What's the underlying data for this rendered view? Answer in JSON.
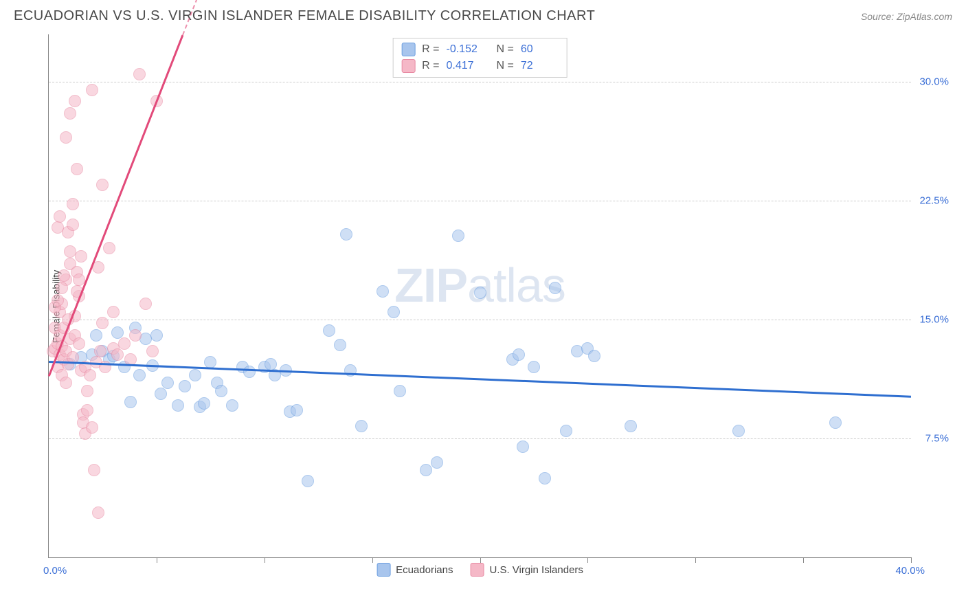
{
  "header": {
    "title": "ECUADORIAN VS U.S. VIRGIN ISLANDER FEMALE DISABILITY CORRELATION CHART",
    "source": "Source: ZipAtlas.com"
  },
  "watermark": {
    "zip": "ZIP",
    "atlas": "atlas"
  },
  "chart": {
    "type": "scatter",
    "y_axis_title": "Female Disability",
    "background_color": "#ffffff",
    "grid_color": "#cccccc",
    "axis_color": "#888888",
    "xlim": [
      0,
      40
    ],
    "ylim": [
      0,
      33
    ],
    "x_ticks": [
      0,
      5,
      10,
      15,
      20,
      25,
      30,
      35,
      40
    ],
    "y_gridlines": [
      7.5,
      15.0,
      22.5,
      30.0
    ],
    "y_tick_labels": [
      "7.5%",
      "15.0%",
      "22.5%",
      "30.0%"
    ],
    "x_min_label": "0.0%",
    "x_max_label": "40.0%",
    "tick_label_color": "#3b6fd6",
    "point_radius": 9,
    "point_opacity": 0.55,
    "series": [
      {
        "name": "Ecuadorians",
        "fill_color": "#a8c5ed",
        "stroke_color": "#6b9ee0",
        "r_value": "-0.152",
        "n_value": "60",
        "trend": {
          "x1": 0,
          "y1": 12.4,
          "x2": 40,
          "y2": 10.2,
          "color": "#2f6fd0",
          "width": 2.5
        },
        "points": [
          [
            1.0,
            12.2
          ],
          [
            1.5,
            12.6
          ],
          [
            2.0,
            12.8
          ],
          [
            2.2,
            14.0
          ],
          [
            2.5,
            13.0
          ],
          [
            2.8,
            12.5
          ],
          [
            3.0,
            12.7
          ],
          [
            3.2,
            14.2
          ],
          [
            3.5,
            12.0
          ],
          [
            3.8,
            9.8
          ],
          [
            4.0,
            14.5
          ],
          [
            4.2,
            11.5
          ],
          [
            4.5,
            13.8
          ],
          [
            5.0,
            14.0
          ],
          [
            5.2,
            10.3
          ],
          [
            5.5,
            11.0
          ],
          [
            6.0,
            9.6
          ],
          [
            6.3,
            10.8
          ],
          [
            6.8,
            11.5
          ],
          [
            7.0,
            9.5
          ],
          [
            7.2,
            9.7
          ],
          [
            7.8,
            11.0
          ],
          [
            8.0,
            10.5
          ],
          [
            8.5,
            9.6
          ],
          [
            9.0,
            12.0
          ],
          [
            9.3,
            11.7
          ],
          [
            10.0,
            12.0
          ],
          [
            10.5,
            11.5
          ],
          [
            11.0,
            11.8
          ],
          [
            11.2,
            9.2
          ],
          [
            11.5,
            9.3
          ],
          [
            12.0,
            4.8
          ],
          [
            13.0,
            14.3
          ],
          [
            13.5,
            13.4
          ],
          [
            13.8,
            20.4
          ],
          [
            14.0,
            11.8
          ],
          [
            14.5,
            8.3
          ],
          [
            15.5,
            16.8
          ],
          [
            16.0,
            15.5
          ],
          [
            16.3,
            10.5
          ],
          [
            17.5,
            5.5
          ],
          [
            18.0,
            6.0
          ],
          [
            19.0,
            20.3
          ],
          [
            20.0,
            16.7
          ],
          [
            21.5,
            12.5
          ],
          [
            21.8,
            12.8
          ],
          [
            22.0,
            7.0
          ],
          [
            22.5,
            12.0
          ],
          [
            23.0,
            5.0
          ],
          [
            23.5,
            17.0
          ],
          [
            24.0,
            8.0
          ],
          [
            24.5,
            13.0
          ],
          [
            25.0,
            13.2
          ],
          [
            25.3,
            12.7
          ],
          [
            27.0,
            8.3
          ],
          [
            32.0,
            8.0
          ],
          [
            36.5,
            8.5
          ],
          [
            10.3,
            12.2
          ],
          [
            7.5,
            12.3
          ],
          [
            4.8,
            12.1
          ]
        ]
      },
      {
        "name": "U.S. Virgin Islanders",
        "fill_color": "#f5b8c7",
        "stroke_color": "#e88aa3",
        "r_value": "0.417",
        "n_value": "72",
        "trend": {
          "x1": 0,
          "y1": 11.5,
          "x2": 6.2,
          "y2": 33.0,
          "color": "#e24a7a",
          "width": 2.5,
          "dash_extend": true
        },
        "points": [
          [
            0.2,
            13.0
          ],
          [
            0.3,
            13.2
          ],
          [
            0.3,
            14.5
          ],
          [
            0.4,
            13.5
          ],
          [
            0.4,
            12.0
          ],
          [
            0.5,
            12.8
          ],
          [
            0.5,
            14.0
          ],
          [
            0.5,
            15.5
          ],
          [
            0.6,
            11.5
          ],
          [
            0.6,
            13.3
          ],
          [
            0.6,
            16.0
          ],
          [
            0.7,
            14.5
          ],
          [
            0.7,
            12.5
          ],
          [
            0.8,
            13.0
          ],
          [
            0.8,
            11.0
          ],
          [
            0.8,
            17.5
          ],
          [
            0.9,
            12.2
          ],
          [
            0.9,
            20.5
          ],
          [
            1.0,
            13.8
          ],
          [
            1.0,
            18.5
          ],
          [
            1.0,
            19.3
          ],
          [
            1.1,
            21.0
          ],
          [
            1.1,
            12.6
          ],
          [
            1.2,
            15.2
          ],
          [
            1.2,
            14.0
          ],
          [
            1.3,
            24.5
          ],
          [
            1.3,
            18.0
          ],
          [
            1.4,
            16.5
          ],
          [
            1.4,
            13.5
          ],
          [
            1.5,
            19.0
          ],
          [
            1.5,
            11.8
          ],
          [
            1.6,
            9.0
          ],
          [
            1.6,
            8.5
          ],
          [
            1.7,
            7.8
          ],
          [
            1.8,
            9.3
          ],
          [
            1.8,
            10.5
          ],
          [
            2.0,
            29.5
          ],
          [
            2.0,
            8.2
          ],
          [
            2.1,
            5.5
          ],
          [
            2.2,
            12.3
          ],
          [
            2.3,
            18.3
          ],
          [
            2.4,
            13.0
          ],
          [
            2.5,
            14.8
          ],
          [
            2.5,
            23.5
          ],
          [
            2.6,
            12.0
          ],
          [
            2.8,
            19.5
          ],
          [
            3.0,
            13.2
          ],
          [
            3.0,
            15.5
          ],
          [
            3.2,
            12.8
          ],
          [
            3.5,
            13.5
          ],
          [
            3.8,
            12.5
          ],
          [
            4.0,
            14.0
          ],
          [
            4.2,
            30.5
          ],
          [
            4.5,
            16.0
          ],
          [
            4.8,
            13.0
          ],
          [
            5.0,
            28.8
          ],
          [
            1.0,
            28.0
          ],
          [
            1.2,
            28.8
          ],
          [
            0.8,
            26.5
          ],
          [
            0.4,
            20.8
          ],
          [
            0.5,
            21.5
          ],
          [
            1.1,
            22.3
          ],
          [
            0.3,
            15.8
          ],
          [
            0.4,
            16.2
          ],
          [
            0.6,
            17.0
          ],
          [
            0.7,
            17.8
          ],
          [
            1.3,
            16.8
          ],
          [
            1.4,
            17.5
          ],
          [
            1.7,
            12.0
          ],
          [
            1.9,
            11.5
          ],
          [
            2.3,
            2.8
          ],
          [
            0.9,
            15.0
          ]
        ]
      }
    ],
    "legend_bottom": [
      {
        "label": "Ecuadorians",
        "fill": "#a8c5ed",
        "stroke": "#6b9ee0"
      },
      {
        "label": "U.S. Virgin Islanders",
        "fill": "#f5b8c7",
        "stroke": "#e88aa3"
      }
    ]
  }
}
